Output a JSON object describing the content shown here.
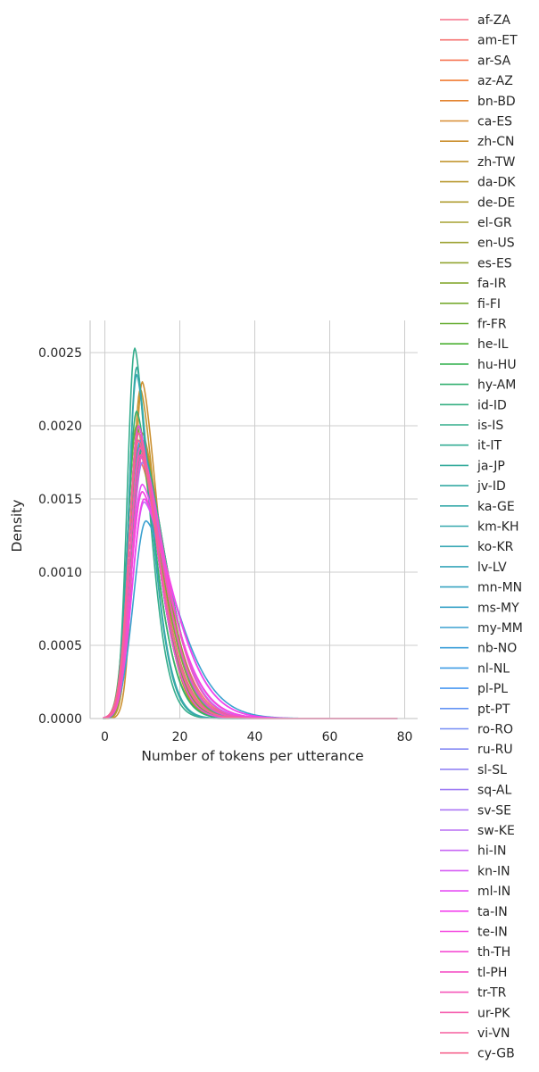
{
  "chart_data": {
    "type": "line",
    "kind": "kde",
    "title": "",
    "xlabel": "Number of tokens per utterance",
    "ylabel": "Density",
    "xlim": [
      -3.5,
      83
    ],
    "ylim": [
      0,
      0.00265
    ],
    "x_ticks": [
      0,
      20,
      40,
      60,
      80
    ],
    "x_tick_labels": [
      "0",
      "20",
      "40",
      "60",
      "80"
    ],
    "y_ticks": [
      0,
      0.0005,
      0.001,
      0.0015,
      0.002,
      0.0025
    ],
    "y_tick_labels": [
      "0.0000",
      "0.0005",
      "0.0010",
      "0.0015",
      "0.0020",
      "0.0025"
    ],
    "grid": true,
    "legend_position": "outside-right",
    "series": [
      {
        "name": "af-ZA",
        "color": "#f67088",
        "peak_x": 9.0,
        "peak_y": 0.00185,
        "spread": 4.5,
        "skew": 2.1
      },
      {
        "name": "am-ET",
        "color": "#f6726f",
        "peak_x": 9.5,
        "peak_y": 0.00175,
        "spread": 4.8,
        "skew": 2.2
      },
      {
        "name": "ar-SA",
        "color": "#f67452",
        "peak_x": 9.0,
        "peak_y": 0.0019,
        "spread": 4.4,
        "skew": 2.0
      },
      {
        "name": "az-AZ",
        "color": "#f17b32",
        "peak_x": 9.5,
        "peak_y": 0.0018,
        "spread": 4.6,
        "skew": 2.1
      },
      {
        "name": "bn-BD",
        "color": "#e38531",
        "peak_x": 9.5,
        "peak_y": 0.00185,
        "spread": 4.5,
        "skew": 2.0
      },
      {
        "name": "ca-ES",
        "color": "#d78c31",
        "peak_x": 10.0,
        "peak_y": 0.00195,
        "spread": 4.3,
        "skew": 2.2
      },
      {
        "name": "zh-CN",
        "color": "#cc9131",
        "peak_x": 10.0,
        "peak_y": 0.0023,
        "spread": 3.7,
        "skew": 2.0
      },
      {
        "name": "zh-TW",
        "color": "#c29631",
        "peak_x": 9.5,
        "peak_y": 0.00225,
        "spread": 3.8,
        "skew": 2.0
      },
      {
        "name": "da-DK",
        "color": "#b99931",
        "peak_x": 9.0,
        "peak_y": 0.002,
        "spread": 4.2,
        "skew": 2.0
      },
      {
        "name": "de-DE",
        "color": "#af9d31",
        "peak_x": 10.0,
        "peak_y": 0.00185,
        "spread": 4.6,
        "skew": 2.3
      },
      {
        "name": "el-GR",
        "color": "#a6a031",
        "peak_x": 9.5,
        "peak_y": 0.0018,
        "spread": 4.6,
        "skew": 2.2
      },
      {
        "name": "en-US",
        "color": "#9ca231",
        "peak_x": 9.0,
        "peak_y": 0.00195,
        "spread": 4.3,
        "skew": 2.1
      },
      {
        "name": "es-ES",
        "color": "#92a531",
        "peak_x": 10.0,
        "peak_y": 0.0019,
        "spread": 4.4,
        "skew": 2.2
      },
      {
        "name": "fa-IR",
        "color": "#86a831",
        "peak_x": 9.5,
        "peak_y": 0.00185,
        "spread": 4.5,
        "skew": 2.1
      },
      {
        "name": "fi-FI",
        "color": "#78ab31",
        "peak_x": 8.5,
        "peak_y": 0.002,
        "spread": 4.1,
        "skew": 2.0
      },
      {
        "name": "fr-FR",
        "color": "#66ad31",
        "peak_x": 10.0,
        "peak_y": 0.00185,
        "spread": 4.6,
        "skew": 2.3
      },
      {
        "name": "he-IL",
        "color": "#4bb032",
        "peak_x": 9.0,
        "peak_y": 0.00195,
        "spread": 4.3,
        "skew": 2.0
      },
      {
        "name": "hu-HU",
        "color": "#32b14e",
        "peak_x": 9.0,
        "peak_y": 0.0019,
        "spread": 4.4,
        "skew": 2.1
      },
      {
        "name": "hy-AM",
        "color": "#33b070",
        "peak_x": 8.5,
        "peak_y": 0.0021,
        "spread": 4.0,
        "skew": 2.0
      },
      {
        "name": "id-ID",
        "color": "#33ae81",
        "peak_x": 9.0,
        "peak_y": 0.002,
        "spread": 4.2,
        "skew": 2.0
      },
      {
        "name": "is-IS",
        "color": "#34ad8c",
        "peak_x": 8.0,
        "peak_y": 0.00253,
        "spread": 3.4,
        "skew": 1.9
      },
      {
        "name": "it-IT",
        "color": "#34ac95",
        "peak_x": 10.0,
        "peak_y": 0.00185,
        "spread": 4.6,
        "skew": 2.3
      },
      {
        "name": "ja-JP",
        "color": "#35ab9c",
        "peak_x": 8.5,
        "peak_y": 0.0024,
        "spread": 3.5,
        "skew": 1.9
      },
      {
        "name": "jv-ID",
        "color": "#35aaa3",
        "peak_x": 9.0,
        "peak_y": 0.00195,
        "spread": 4.3,
        "skew": 2.1
      },
      {
        "name": "ka-GE",
        "color": "#36a9a9",
        "peak_x": 9.0,
        "peak_y": 0.0019,
        "spread": 4.4,
        "skew": 2.1
      },
      {
        "name": "km-KH",
        "color": "#36a8ae",
        "peak_x": 8.5,
        "peak_y": 0.00235,
        "spread": 3.6,
        "skew": 1.9
      },
      {
        "name": "ko-KR",
        "color": "#37a7b4",
        "peak_x": 9.0,
        "peak_y": 0.002,
        "spread": 4.2,
        "skew": 2.0
      },
      {
        "name": "lv-LV",
        "color": "#38a6ba",
        "peak_x": 9.0,
        "peak_y": 0.00195,
        "spread": 4.3,
        "skew": 2.1
      },
      {
        "name": "mn-MN",
        "color": "#39a4c1",
        "peak_x": 9.5,
        "peak_y": 0.0018,
        "spread": 4.6,
        "skew": 2.2
      },
      {
        "name": "ms-MY",
        "color": "#3aa3c8",
        "peak_x": 9.5,
        "peak_y": 0.00185,
        "spread": 4.5,
        "skew": 2.2
      },
      {
        "name": "my-MM",
        "color": "#3ba1d0",
        "peak_x": 11.0,
        "peak_y": 0.00135,
        "spread": 5.6,
        "skew": 2.4
      },
      {
        "name": "nb-NO",
        "color": "#3d9fd9",
        "peak_x": 9.0,
        "peak_y": 0.00195,
        "spread": 4.3,
        "skew": 2.1
      },
      {
        "name": "nl-NL",
        "color": "#3f9ce5",
        "peak_x": 9.5,
        "peak_y": 0.0019,
        "spread": 4.4,
        "skew": 2.2
      },
      {
        "name": "pl-PL",
        "color": "#4a98f3",
        "peak_x": 9.5,
        "peak_y": 0.0018,
        "spread": 4.6,
        "skew": 2.2
      },
      {
        "name": "pt-PT",
        "color": "#6393f4",
        "peak_x": 9.5,
        "peak_y": 0.00185,
        "spread": 4.5,
        "skew": 2.2
      },
      {
        "name": "ro-RO",
        "color": "#758ef4",
        "peak_x": 10.0,
        "peak_y": 0.0018,
        "spread": 4.6,
        "skew": 2.3
      },
      {
        "name": "ru-RU",
        "color": "#8489f4",
        "peak_x": 9.5,
        "peak_y": 0.00185,
        "spread": 4.5,
        "skew": 2.2
      },
      {
        "name": "sl-SL",
        "color": "#9283f4",
        "peak_x": 9.0,
        "peak_y": 0.00195,
        "spread": 4.3,
        "skew": 2.1
      },
      {
        "name": "sq-AL",
        "color": "#9f7df4",
        "peak_x": 10.0,
        "peak_y": 0.00175,
        "spread": 4.7,
        "skew": 2.3
      },
      {
        "name": "sv-SE",
        "color": "#ac77f4",
        "peak_x": 9.0,
        "peak_y": 0.00195,
        "spread": 4.3,
        "skew": 2.1
      },
      {
        "name": "sw-KE",
        "color": "#b96ff4",
        "peak_x": 9.5,
        "peak_y": 0.00185,
        "spread": 4.5,
        "skew": 2.2
      },
      {
        "name": "hi-IN",
        "color": "#c766f4",
        "peak_x": 10.5,
        "peak_y": 0.00148,
        "spread": 5.3,
        "skew": 2.4
      },
      {
        "name": "kn-IN",
        "color": "#d65cf4",
        "peak_x": 10.0,
        "peak_y": 0.00155,
        "spread": 5.1,
        "skew": 2.3
      },
      {
        "name": "ml-IN",
        "color": "#e64ff4",
        "peak_x": 10.0,
        "peak_y": 0.0016,
        "spread": 5.0,
        "skew": 2.3
      },
      {
        "name": "ta-IN",
        "color": "#f343ed",
        "peak_x": 10.5,
        "peak_y": 0.0015,
        "spread": 5.3,
        "skew": 2.4
      },
      {
        "name": "te-IN",
        "color": "#f449e0",
        "peak_x": 10.0,
        "peak_y": 0.00155,
        "spread": 5.1,
        "skew": 2.3
      },
      {
        "name": "th-TH",
        "color": "#f54dd3",
        "peak_x": 9.0,
        "peak_y": 0.002,
        "spread": 4.2,
        "skew": 2.0
      },
      {
        "name": "tl-PH",
        "color": "#f552c6",
        "peak_x": 10.0,
        "peak_y": 0.0018,
        "spread": 4.6,
        "skew": 2.3
      },
      {
        "name": "tr-TR",
        "color": "#f556b9",
        "peak_x": 9.5,
        "peak_y": 0.00185,
        "spread": 4.5,
        "skew": 2.2
      },
      {
        "name": "ur-PK",
        "color": "#f55aac",
        "peak_x": 9.5,
        "peak_y": 0.0018,
        "spread": 4.6,
        "skew": 2.2
      },
      {
        "name": "vi-VN",
        "color": "#f65f9e",
        "peak_x": 9.0,
        "peak_y": 0.0019,
        "spread": 4.4,
        "skew": 2.1
      },
      {
        "name": "cy-GB",
        "color": "#f6668f",
        "peak_x": 9.0,
        "peak_y": 0.00195,
        "spread": 4.3,
        "skew": 2.1
      }
    ]
  }
}
